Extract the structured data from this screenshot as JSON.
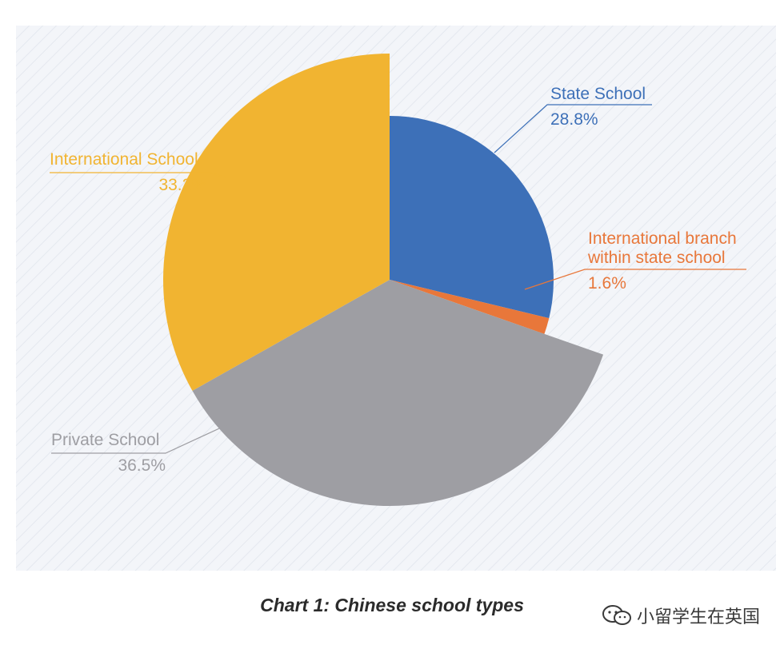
{
  "caption": "Chart 1: Chinese school types",
  "watermark": "小留学生在英国",
  "chart_data": {
    "type": "pie",
    "title": "Chart 1: Chinese school types",
    "unit": "%",
    "slices": [
      {
        "label_lines": [
          "State School"
        ],
        "value": 28.8,
        "value_label": "28.8%",
        "color": "#3d70b8",
        "exploded": false
      },
      {
        "label_lines": [
          "International branch",
          "within state school"
        ],
        "value": 1.6,
        "value_label": "1.6%",
        "color": "#e8773a",
        "exploded": false
      },
      {
        "label_lines": [
          "Private School"
        ],
        "value": 36.5,
        "value_label": "36.5%",
        "color": "#9e9ea3",
        "exploded": true
      },
      {
        "label_lines": [
          "International School"
        ],
        "value": 33.2,
        "value_label": "33.2%",
        "color": "#f1b431",
        "exploded": true
      }
    ],
    "background": "#f3f5f9",
    "legend": "none"
  }
}
